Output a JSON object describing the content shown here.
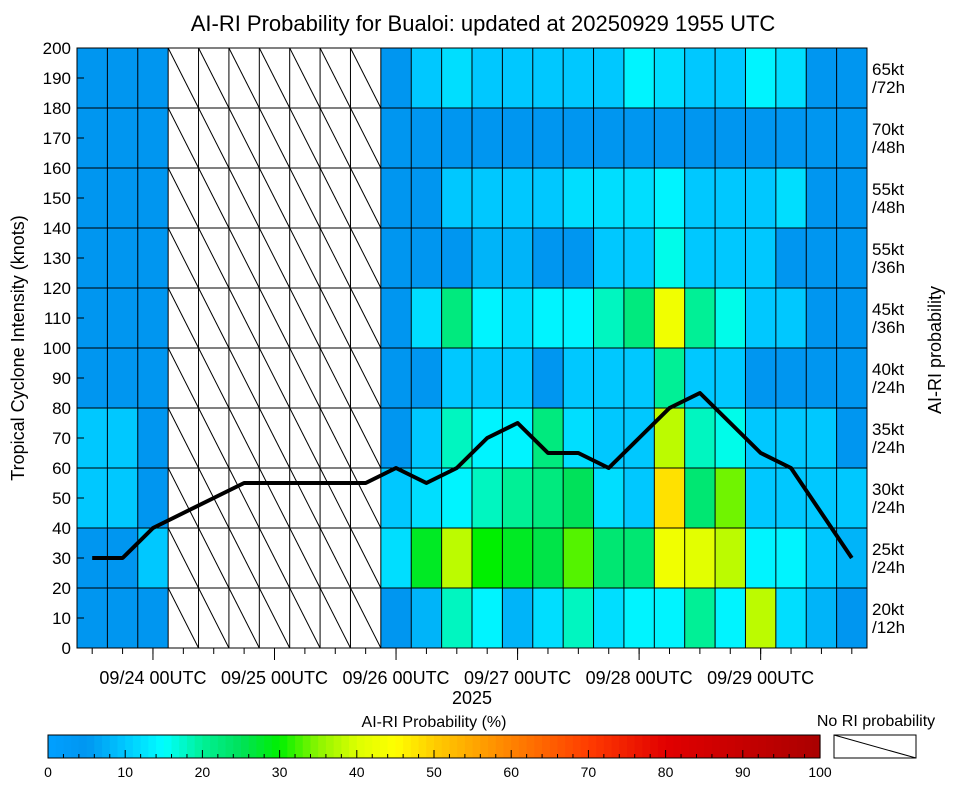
{
  "chart_data": {
    "type": "heatmap",
    "title": "AI-RI Probability for Bualoi: updated at 20250929 1955 UTC",
    "ylabel": "Tropical Cyclone Intensity (knots)",
    "ylabel_right": "AI-RI probability",
    "year_label": "2025",
    "ylim": [
      0,
      200
    ],
    "y_ticks": [
      "0",
      "10",
      "20",
      "30",
      "40",
      "50",
      "60",
      "70",
      "80",
      "90",
      "100",
      "110",
      "120",
      "130",
      "140",
      "150",
      "160",
      "170",
      "180",
      "190",
      "200"
    ],
    "x_ticks": [
      "09/24 00UTC",
      "09/25 00UTC",
      "09/26 00UTC",
      "09/27 00UTC",
      "09/28 00UTC",
      "09/29 00UTC"
    ],
    "time_steps": 26,
    "row_labels": [
      {
        "kt": "20kt",
        "period": "/12h"
      },
      {
        "kt": "25kt",
        "period": "/24h"
      },
      {
        "kt": "30kt",
        "period": "/24h"
      },
      {
        "kt": "35kt",
        "period": "/24h"
      },
      {
        "kt": "40kt",
        "period": "/24h"
      },
      {
        "kt": "45kt",
        "period": "/36h"
      },
      {
        "kt": "55kt",
        "period": "/36h"
      },
      {
        "kt": "55kt",
        "period": "/48h"
      },
      {
        "kt": "70kt",
        "period": "/48h"
      },
      {
        "kt": "65kt",
        "period": "/72h"
      }
    ],
    "probabilities_pct": [
      [
        5,
        5,
        5,
        null,
        null,
        null,
        null,
        null,
        null,
        null,
        5,
        8,
        18,
        14,
        8,
        12,
        18,
        12,
        14,
        14,
        20,
        14,
        38,
        12,
        8,
        5
      ],
      [
        5,
        5,
        10,
        null,
        null,
        null,
        null,
        null,
        null,
        null,
        12,
        28,
        38,
        30,
        28,
        26,
        33,
        23,
        23,
        43,
        41,
        38,
        14,
        14,
        10,
        8
      ],
      [
        10,
        10,
        5,
        null,
        null,
        null,
        null,
        null,
        null,
        null,
        10,
        12,
        14,
        18,
        20,
        22,
        25,
        12,
        10,
        48,
        23,
        34,
        10,
        10,
        10,
        10
      ],
      [
        10,
        10,
        5,
        null,
        null,
        null,
        null,
        null,
        null,
        null,
        5,
        10,
        18,
        14,
        14,
        22,
        12,
        10,
        10,
        38,
        18,
        16,
        10,
        10,
        10,
        5
      ],
      [
        5,
        5,
        5,
        null,
        null,
        null,
        null,
        null,
        null,
        null,
        5,
        5,
        10,
        10,
        10,
        5,
        10,
        10,
        10,
        20,
        10,
        10,
        5,
        5,
        5,
        5
      ],
      [
        5,
        5,
        5,
        null,
        null,
        null,
        null,
        null,
        null,
        null,
        5,
        12,
        22,
        14,
        12,
        14,
        14,
        18,
        22,
        43,
        20,
        16,
        10,
        10,
        5,
        5
      ],
      [
        5,
        5,
        5,
        null,
        null,
        null,
        null,
        null,
        null,
        null,
        5,
        5,
        5,
        8,
        8,
        5,
        5,
        10,
        10,
        16,
        10,
        10,
        10,
        5,
        5,
        5
      ],
      [
        5,
        5,
        5,
        null,
        null,
        null,
        null,
        null,
        null,
        null,
        5,
        5,
        10,
        10,
        10,
        10,
        12,
        12,
        12,
        14,
        10,
        10,
        10,
        12,
        5,
        5
      ],
      [
        5,
        5,
        5,
        null,
        null,
        null,
        null,
        null,
        null,
        null,
        5,
        5,
        5,
        5,
        5,
        5,
        5,
        5,
        5,
        5,
        5,
        5,
        5,
        5,
        5,
        5
      ],
      [
        5,
        5,
        5,
        null,
        null,
        null,
        null,
        null,
        null,
        null,
        5,
        10,
        12,
        10,
        10,
        10,
        10,
        10,
        14,
        12,
        10,
        10,
        14,
        12,
        5,
        5
      ]
    ],
    "intensity_series": {
      "name": "Tropical Cyclone Intensity",
      "values": [
        30,
        30,
        40,
        45,
        50,
        55,
        55,
        55,
        55,
        55,
        60,
        55,
        60,
        70,
        75,
        65,
        65,
        60,
        70,
        80,
        85,
        75,
        65,
        60,
        45,
        30
      ]
    },
    "colorbar": {
      "label": "AI-RI Probability (%)",
      "ticks": [
        "0",
        "10",
        "20",
        "30",
        "40",
        "50",
        "60",
        "70",
        "80",
        "90",
        "100"
      ],
      "no_ri_label": "No RI probability"
    }
  }
}
